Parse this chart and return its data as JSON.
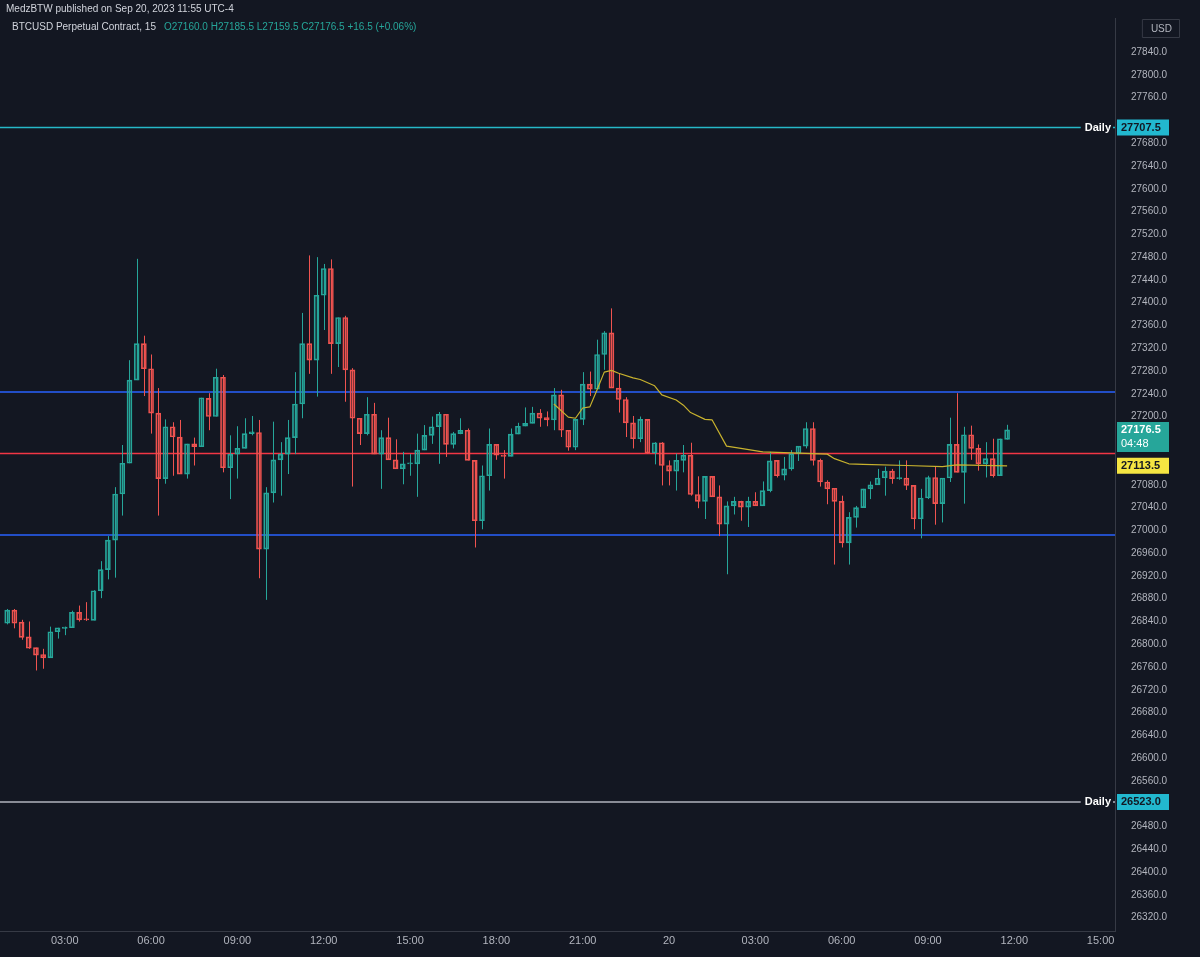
{
  "chart_data": {
    "type": "candlestick",
    "x": [
      "2023-09-19T01:00",
      "2023-09-19T01:15",
      "2023-09-19T01:30",
      "2023-09-19T01:45",
      "2023-09-19T02:00",
      "2023-09-19T02:15",
      "2023-09-19T02:30",
      "2023-09-19T02:45",
      "2023-09-19T03:00",
      "2023-09-19T03:15",
      "2023-09-19T03:30",
      "2023-09-19T03:45",
      "2023-09-19T04:00",
      "2023-09-19T04:15",
      "2023-09-19T04:30",
      "2023-09-19T04:45",
      "2023-09-19T05:00",
      "2023-09-19T05:15",
      "2023-09-19T05:30",
      "2023-09-19T05:45",
      "2023-09-19T06:00",
      "2023-09-19T06:15",
      "2023-09-19T06:30",
      "2023-09-19T06:45",
      "2023-09-19T07:00",
      "2023-09-19T07:15",
      "2023-09-19T07:30",
      "2023-09-19T07:45",
      "2023-09-19T08:00",
      "2023-09-19T08:15",
      "2023-09-19T08:30",
      "2023-09-19T08:45",
      "2023-09-19T09:00",
      "2023-09-19T09:15",
      "2023-09-19T09:30",
      "2023-09-19T09:45",
      "2023-09-19T10:00",
      "2023-09-19T10:15",
      "2023-09-19T10:30",
      "2023-09-19T10:45",
      "2023-09-19T11:00",
      "2023-09-19T11:15",
      "2023-09-19T11:30",
      "2023-09-19T11:45",
      "2023-09-19T12:00",
      "2023-09-19T12:15",
      "2023-09-19T12:30",
      "2023-09-19T12:45",
      "2023-09-19T13:00",
      "2023-09-19T13:15",
      "2023-09-19T13:30",
      "2023-09-19T13:45",
      "2023-09-19T14:00",
      "2023-09-19T14:15",
      "2023-09-19T14:30",
      "2023-09-19T14:45",
      "2023-09-19T15:00",
      "2023-09-19T15:15",
      "2023-09-19T15:30",
      "2023-09-19T15:45",
      "2023-09-19T16:00",
      "2023-09-19T16:15",
      "2023-09-19T16:30",
      "2023-09-19T16:45",
      "2023-09-19T17:00",
      "2023-09-19T17:15",
      "2023-09-19T17:30",
      "2023-09-19T17:45",
      "2023-09-19T18:00",
      "2023-09-19T18:15",
      "2023-09-19T18:30",
      "2023-09-19T18:45",
      "2023-09-19T19:00",
      "2023-09-19T19:15",
      "2023-09-19T19:30",
      "2023-09-19T19:45",
      "2023-09-19T20:00",
      "2023-09-19T20:15",
      "2023-09-19T20:30",
      "2023-09-19T20:45",
      "2023-09-19T21:00",
      "2023-09-19T21:15",
      "2023-09-19T21:30",
      "2023-09-19T21:45",
      "2023-09-19T22:00",
      "2023-09-19T22:15",
      "2023-09-19T22:30",
      "2023-09-19T22:45",
      "2023-09-19T23:00",
      "2023-09-19T23:15",
      "2023-09-19T23:30",
      "2023-09-19T23:45",
      "2023-09-20T00:00",
      "2023-09-20T00:15",
      "2023-09-20T00:30",
      "2023-09-20T00:45",
      "2023-09-20T01:00",
      "2023-09-20T01:15",
      "2023-09-20T01:30",
      "2023-09-20T01:45",
      "2023-09-20T02:00",
      "2023-09-20T02:15",
      "2023-09-20T02:30",
      "2023-09-20T02:45",
      "2023-09-20T03:00",
      "2023-09-20T03:15",
      "2023-09-20T03:30",
      "2023-09-20T03:45",
      "2023-09-20T04:00",
      "2023-09-20T04:15",
      "2023-09-20T04:30",
      "2023-09-20T04:45",
      "2023-09-20T05:00",
      "2023-09-20T05:15",
      "2023-09-20T05:30",
      "2023-09-20T05:45",
      "2023-09-20T06:00",
      "2023-09-20T06:15",
      "2023-09-20T06:30",
      "2023-09-20T06:45",
      "2023-09-20T07:00",
      "2023-09-20T07:15",
      "2023-09-20T07:30",
      "2023-09-20T07:45",
      "2023-09-20T08:00",
      "2023-09-20T08:15",
      "2023-09-20T08:30",
      "2023-09-20T08:45",
      "2023-09-20T09:00",
      "2023-09-20T09:15",
      "2023-09-20T09:30",
      "2023-09-20T09:45",
      "2023-09-20T10:00",
      "2023-09-20T10:15",
      "2023-09-20T10:30",
      "2023-09-20T10:45",
      "2023-09-20T11:00",
      "2023-09-20T11:15",
      "2023-09-20T11:30",
      "2023-09-20T11:45"
    ],
    "ohlc": [
      [
        26837,
        26862,
        26835,
        26860
      ],
      [
        26860,
        26862,
        26828,
        26837
      ],
      [
        26839,
        26843,
        26808,
        26812
      ],
      [
        26813,
        26840,
        26792,
        26793
      ],
      [
        26794,
        26794,
        26754,
        26781
      ],
      [
        26782,
        26792,
        26757,
        26776
      ],
      [
        26776,
        26831,
        26776,
        26822
      ],
      [
        26822,
        26829,
        26810,
        26829
      ],
      [
        26828,
        26831,
        26816,
        26830
      ],
      [
        26829,
        26859,
        26829,
        26856
      ],
      [
        26856,
        26868,
        26840,
        26843
      ],
      [
        26844,
        26874,
        26841,
        26843
      ],
      [
        26842,
        26895,
        26842,
        26894
      ],
      [
        26894,
        26946,
        26881,
        26931
      ],
      [
        26931,
        26990,
        26914,
        26983
      ],
      [
        26983,
        27076,
        26917,
        27064
      ],
      [
        27064,
        27150,
        27026,
        27118
      ],
      [
        27118,
        27299,
        27118,
        27264
      ],
      [
        27264,
        27477,
        27264,
        27328
      ],
      [
        27328,
        27342,
        27236,
        27284
      ],
      [
        27284,
        27309,
        27170,
        27206
      ],
      [
        27206,
        27250,
        27026,
        27091
      ],
      [
        27091,
        27195,
        27082,
        27182
      ],
      [
        27182,
        27190,
        27096,
        27164
      ],
      [
        27164,
        27194,
        27099,
        27099
      ],
      [
        27099,
        27152,
        27091,
        27152
      ],
      [
        27152,
        27163,
        27114,
        27147
      ],
      [
        27147,
        27233,
        27147,
        27233
      ],
      [
        27232,
        27241,
        27176,
        27200
      ],
      [
        27200,
        27284,
        27200,
        27269
      ],
      [
        27269,
        27273,
        27102,
        27110
      ],
      [
        27110,
        27167,
        27055,
        27134
      ],
      [
        27134,
        27183,
        27091,
        27144
      ],
      [
        27144,
        27197,
        27144,
        27170
      ],
      [
        27170,
        27201,
        27167,
        27173
      ],
      [
        27172,
        27194,
        26916,
        26967
      ],
      [
        26967,
        27076,
        26878,
        27066
      ],
      [
        27066,
        27191,
        27049,
        27124
      ],
      [
        27124,
        27155,
        27061,
        27134
      ],
      [
        27134,
        27194,
        27099,
        27163
      ],
      [
        27163,
        27278,
        27134,
        27222
      ],
      [
        27222,
        27382,
        27197,
        27328
      ],
      [
        27328,
        27483,
        27275,
        27299
      ],
      [
        27299,
        27480,
        27235,
        27413
      ],
      [
        27413,
        27468,
        27352,
        27460
      ],
      [
        27460,
        27476,
        27275,
        27328
      ],
      [
        27328,
        27374,
        27287,
        27374
      ],
      [
        27374,
        27377,
        27226,
        27282
      ],
      [
        27282,
        27285,
        27077,
        27197
      ],
      [
        27197,
        27197,
        27150,
        27170
      ],
      [
        27170,
        27234,
        27167,
        27204
      ],
      [
        27204,
        27224,
        27134,
        27134
      ],
      [
        27134,
        27176,
        27073,
        27163
      ],
      [
        27163,
        27198,
        27124,
        27124
      ],
      [
        27124,
        27160,
        27108,
        27108
      ],
      [
        27108,
        27138,
        27081,
        27117
      ],
      [
        27117,
        27134,
        27096,
        27118
      ],
      [
        27117,
        27170,
        27059,
        27141
      ],
      [
        27141,
        27185,
        27141,
        27167
      ],
      [
        27167,
        27200,
        27152,
        27182
      ],
      [
        27182,
        27208,
        27117,
        27204
      ],
      [
        27204,
        27204,
        27129,
        27151
      ],
      [
        27151,
        27173,
        27144,
        27170
      ],
      [
        27170,
        27197,
        27169,
        27176
      ],
      [
        27176,
        27179,
        27123,
        27123
      ],
      [
        27123,
        27123,
        26970,
        27017
      ],
      [
        27017,
        27114,
        27002,
        27096
      ],
      [
        27096,
        27179,
        27070,
        27151
      ],
      [
        27151,
        27151,
        27124,
        27132
      ],
      [
        27132,
        27141,
        27091,
        27130
      ],
      [
        27130,
        27179,
        27130,
        27169
      ],
      [
        27169,
        27189,
        27169,
        27183
      ],
      [
        27183,
        27216,
        27183,
        27188
      ],
      [
        27188,
        27217,
        27188,
        27206
      ],
      [
        27206,
        27213,
        27182,
        27197
      ],
      [
        27198,
        27209,
        27183,
        27194
      ],
      [
        27194,
        27250,
        27176,
        27238
      ],
      [
        27238,
        27247,
        27164,
        27176
      ],
      [
        27176,
        27176,
        27140,
        27146
      ],
      [
        27146,
        27195,
        27141,
        27195
      ],
      [
        27195,
        27278,
        27185,
        27257
      ],
      [
        27257,
        27279,
        27236,
        27248
      ],
      [
        27248,
        27335,
        27248,
        27309
      ],
      [
        27309,
        27350,
        27282,
        27347
      ],
      [
        27347,
        27390,
        27250,
        27250
      ],
      [
        27250,
        27276,
        27207,
        27230
      ],
      [
        27230,
        27234,
        27164,
        27189
      ],
      [
        27189,
        27201,
        27144,
        27161
      ],
      [
        27161,
        27200,
        27155,
        27195
      ],
      [
        27195,
        27195,
        27135,
        27136
      ],
      [
        27136,
        27155,
        27116,
        27154
      ],
      [
        27154,
        27155,
        27079,
        27114
      ],
      [
        27114,
        27123,
        27079,
        27104
      ],
      [
        27104,
        27135,
        27070,
        27123
      ],
      [
        27123,
        27150,
        27102,
        27132
      ],
      [
        27132,
        27154,
        27061,
        27063
      ],
      [
        27063,
        27095,
        27039,
        27051
      ],
      [
        27051,
        27095,
        27020,
        27095
      ],
      [
        27095,
        27095,
        27059,
        27059
      ],
      [
        27059,
        27079,
        26990,
        27011
      ],
      [
        27011,
        27051,
        26923,
        27043
      ],
      [
        27043,
        27059,
        27028,
        27051
      ],
      [
        27051,
        27052,
        27017,
        27041
      ],
      [
        27041,
        27059,
        27006,
        27051
      ],
      [
        27051,
        27067,
        27043,
        27043
      ],
      [
        27043,
        27086,
        27043,
        27070
      ],
      [
        27070,
        27138,
        27067,
        27122
      ],
      [
        27123,
        27123,
        27093,
        27096
      ],
      [
        27097,
        27129,
        27088,
        27108
      ],
      [
        27108,
        27141,
        27105,
        27135
      ],
      [
        27135,
        27148,
        27122,
        27148
      ],
      [
        27148,
        27190,
        27144,
        27179
      ],
      [
        27179,
        27190,
        27114,
        27123
      ],
      [
        27123,
        27126,
        27077,
        27085
      ],
      [
        27085,
        27088,
        27046,
        27073
      ],
      [
        27074,
        27074,
        26940,
        27051
      ],
      [
        27051,
        27061,
        26970,
        26978
      ],
      [
        26978,
        27032,
        26940,
        27023
      ],
      [
        27023,
        27043,
        27005,
        27040
      ],
      [
        27040,
        27073,
        27040,
        27073
      ],
      [
        27073,
        27086,
        27055,
        27080
      ],
      [
        27080,
        27108,
        27080,
        27092
      ],
      [
        27092,
        27112,
        27061,
        27104
      ],
      [
        27104,
        27108,
        27082,
        27091
      ],
      [
        27091,
        27123,
        27089,
        27092
      ],
      [
        27092,
        27123,
        27071,
        27079
      ],
      [
        27079,
        27079,
        27002,
        27020
      ],
      [
        27020,
        27073,
        26986,
        27057
      ],
      [
        27057,
        27096,
        27055,
        27093
      ],
      [
        27093,
        27112,
        27010,
        27047
      ],
      [
        27047,
        27092,
        27014,
        27092
      ],
      [
        27092,
        27198,
        27085,
        27151
      ],
      [
        27151,
        27241,
        27102,
        27102
      ],
      [
        27102,
        27182,
        27047,
        27168
      ],
      [
        27168,
        27184,
        27124,
        27144
      ],
      [
        27144,
        27151,
        27105,
        27117
      ],
      [
        27117,
        27155,
        27093,
        27126
      ],
      [
        27126,
        27161,
        27093,
        27096
      ],
      [
        27096,
        27161,
        27096,
        27161
      ],
      [
        27160,
        27185.5,
        27159.5,
        27176.5
      ]
    ],
    "series": [
      {
        "type": "line",
        "color": "#c8b22e",
        "x": [
          "2023-09-19T20:00",
          "2023-09-19T20:30",
          "2023-09-19T20:45",
          "2023-09-19T21:00",
          "2023-09-19T21:15",
          "2023-09-19T21:30",
          "2023-09-19T21:45",
          "2023-09-19T22:00",
          "2023-09-19T22:15",
          "2023-09-19T22:45",
          "2023-09-19T23:00",
          "2023-09-19T23:30",
          "2023-09-19T23:45",
          "2023-09-20T00:15",
          "2023-09-20T00:30",
          "2023-09-20T00:45",
          "2023-09-20T01:15",
          "2023-09-20T01:30",
          "2023-09-20T02:00",
          "2023-09-20T02:30",
          "2023-09-20T03:15",
          "2023-09-20T05:30",
          "2023-09-20T05:45",
          "2023-09-20T06:15",
          "2023-09-20T06:45",
          "2023-09-20T08:15",
          "2023-09-20T09:30",
          "2023-09-20T10:00",
          "2023-09-20T11:45"
        ],
        "values": [
          27222,
          27199,
          27197,
          27215,
          27217,
          27247,
          27278,
          27281,
          27276,
          27268,
          27265,
          27254,
          27238,
          27229,
          27220,
          27207,
          27195,
          27194,
          27148,
          27144,
          27138,
          27134,
          27126,
          27117,
          27116,
          27114,
          27112,
          27115,
          27113.5
        ]
      }
    ],
    "xlim": [
      "2023-09-19T00:45",
      "2023-09-20T15:30"
    ],
    "xticks": [
      {
        "value": "2023-09-19T03:00",
        "label": "03:00"
      },
      {
        "value": "2023-09-19T06:00",
        "label": "06:00"
      },
      {
        "value": "2023-09-19T09:00",
        "label": "09:00"
      },
      {
        "value": "2023-09-19T12:00",
        "label": "12:00"
      },
      {
        "value": "2023-09-19T15:00",
        "label": "15:00"
      },
      {
        "value": "2023-09-19T18:00",
        "label": "18:00"
      },
      {
        "value": "2023-09-19T21:00",
        "label": "21:00"
      },
      {
        "value": "2023-09-20T00:00",
        "label": "20"
      },
      {
        "value": "2023-09-20T03:00",
        "label": "03:00"
      },
      {
        "value": "2023-09-20T06:00",
        "label": "06:00"
      },
      {
        "value": "2023-09-20T09:00",
        "label": "09:00"
      },
      {
        "value": "2023-09-20T12:00",
        "label": "12:00"
      },
      {
        "value": "2023-09-20T15:00",
        "label": "15:00"
      }
    ],
    "ylim": [
      26295,
      27900
    ],
    "yticks": [
      {
        "value": 26320,
        "label": "26320.0"
      },
      {
        "value": 26360,
        "label": "26360.0"
      },
      {
        "value": 26400,
        "label": "26400.0"
      },
      {
        "value": 26440,
        "label": "26440.0"
      },
      {
        "value": 26480,
        "label": "26480.0"
      },
      {
        "value": 26560,
        "label": "26560.0"
      },
      {
        "value": 26600,
        "label": "26600.0"
      },
      {
        "value": 26640,
        "label": "26640.0"
      },
      {
        "value": 26680,
        "label": "26680.0"
      },
      {
        "value": 26720,
        "label": "26720.0"
      },
      {
        "value": 26760,
        "label": "26760.0"
      },
      {
        "value": 26800,
        "label": "26800.0"
      },
      {
        "value": 26840,
        "label": "26840.0"
      },
      {
        "value": 26880,
        "label": "26880.0"
      },
      {
        "value": 26920,
        "label": "26920.0"
      },
      {
        "value": 26960,
        "label": "26960.0"
      },
      {
        "value": 27000,
        "label": "27000.0"
      },
      {
        "value": 27040,
        "label": "27040.0"
      },
      {
        "value": 27080,
        "label": "27080.0"
      },
      {
        "value": 27200,
        "label": "27200.0"
      },
      {
        "value": 27240,
        "label": "27240.0"
      },
      {
        "value": 27280,
        "label": "27280.0"
      },
      {
        "value": 27320,
        "label": "27320.0"
      },
      {
        "value": 27360,
        "label": "27360.0"
      },
      {
        "value": 27400,
        "label": "27400.0"
      },
      {
        "value": 27440,
        "label": "27440.0"
      },
      {
        "value": 27480,
        "label": "27480.0"
      },
      {
        "value": 27520,
        "label": "27520.0"
      },
      {
        "value": 27560,
        "label": "27560.0"
      },
      {
        "value": 27600,
        "label": "27600.0"
      },
      {
        "value": 27640,
        "label": "27640.0"
      },
      {
        "value": 27680,
        "label": "27680.0"
      },
      {
        "value": 27760,
        "label": "27760.0"
      },
      {
        "value": 27800,
        "label": "27800.0"
      },
      {
        "value": 27840,
        "label": "27840.0"
      }
    ],
    "ref_lines": [
      {
        "axis": "y",
        "value": 27707.5,
        "label": "Daily",
        "color": "#26b8c8"
      },
      {
        "axis": "y",
        "value": 26523.0,
        "label": "Daily",
        "color": "#b2b5be"
      },
      {
        "axis": "y",
        "value": 27243,
        "color": "#2962ff"
      },
      {
        "axis": "y",
        "value": 26992,
        "color": "#2962ff"
      },
      {
        "axis": "y",
        "value": 27135,
        "color": "#f23645"
      }
    ],
    "annotations": [
      "MedzBTW published on Sep 20, 2023 11:55 UTC-4",
      "BTCUSD Perpetual Contract, 15",
      "O27160.0 H27185.5 L27159.5 C27176.5 +16.5 (+0.06%)",
      "USD",
      "27707.5",
      "26523.0",
      "27176.5",
      "04:48",
      "27113.5"
    ],
    "legend": false
  }
}
